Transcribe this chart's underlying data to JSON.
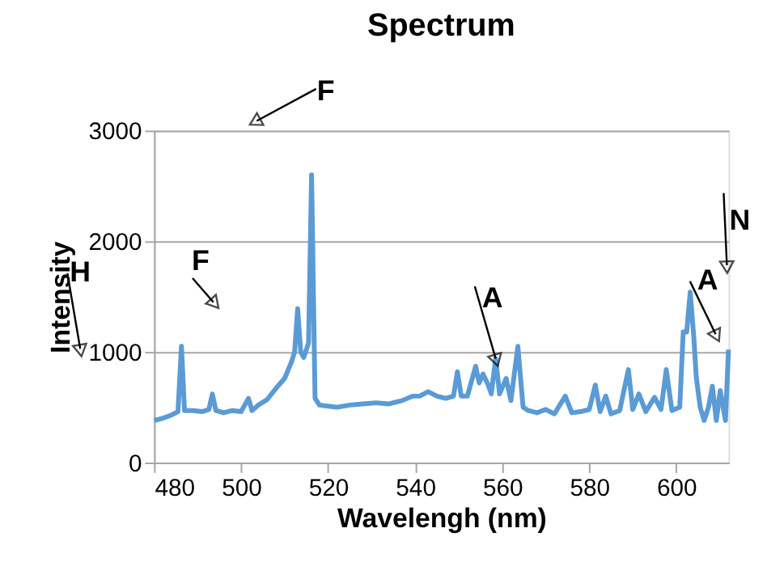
{
  "chart_data": {
    "type": "line",
    "title": "Spectrum",
    "xlabel": "Wavelengh (nm)",
    "ylabel": "Intensity",
    "xlim": [
      480,
      612
    ],
    "xticks": [
      480,
      500,
      520,
      540,
      560,
      580,
      600
    ],
    "ylim": [
      0,
      3000
    ],
    "yticks": [
      0,
      1000,
      2000,
      3000
    ],
    "grid": "y",
    "marker": "none",
    "line_style": "solid",
    "series": [
      {
        "color": "#5b9bd5",
        "x": [
          480,
          482,
          484,
          485.5,
          486.3,
          487,
          489,
          491,
          492.6,
          493.4,
          494.2,
          496,
          498,
          500,
          501.7,
          502.5,
          504,
          506,
          508,
          510,
          511.6,
          512.3,
          513,
          513.7,
          514.4,
          515.5,
          516.2,
          517,
          518,
          520,
          522,
          525,
          528,
          531,
          534,
          537,
          539.4,
          541,
          543,
          545,
          547,
          548.8,
          549.7,
          550.6,
          552,
          553.9,
          554.7,
          555.6,
          556.8,
          557.5,
          558.5,
          559.4,
          560.9,
          562,
          563.6,
          564.8,
          566,
          568,
          570,
          572,
          574.5,
          576,
          578,
          580,
          581.4,
          582.5,
          583.8,
          585,
          587,
          589,
          590,
          591.4,
          593,
          595,
          596.5,
          597.7,
          599,
          600.8,
          601.6,
          602.4,
          603.2,
          604,
          604.6,
          605.5,
          606.4,
          607.4,
          608.3,
          609.2,
          610.1,
          611.3,
          612
        ],
        "values": [
          380,
          400,
          430,
          460,
          1050,
          470,
          470,
          460,
          480,
          620,
          470,
          450,
          470,
          460,
          580,
          470,
          520,
          570,
          670,
          760,
          910,
          1000,
          1390,
          1000,
          950,
          1080,
          2600,
          580,
          520,
          510,
          500,
          520,
          530,
          540,
          530,
          560,
          600,
          600,
          640,
          600,
          580,
          600,
          820,
          600,
          600,
          870,
          720,
          800,
          700,
          620,
          940,
          620,
          760,
          560,
          1050,
          500,
          470,
          450,
          480,
          440,
          600,
          450,
          460,
          480,
          700,
          460,
          600,
          440,
          470,
          840,
          480,
          620,
          460,
          590,
          480,
          840,
          470,
          500,
          1180,
          1180,
          1540,
          1150,
          770,
          500,
          380,
          500,
          690,
          380,
          650,
          380,
          1020
        ]
      }
    ],
    "annotations": [
      "H",
      "F",
      "F",
      {
        "text": "A",
        "x": 558.5,
        "y": 940
      },
      "A",
      "N"
    ]
  }
}
